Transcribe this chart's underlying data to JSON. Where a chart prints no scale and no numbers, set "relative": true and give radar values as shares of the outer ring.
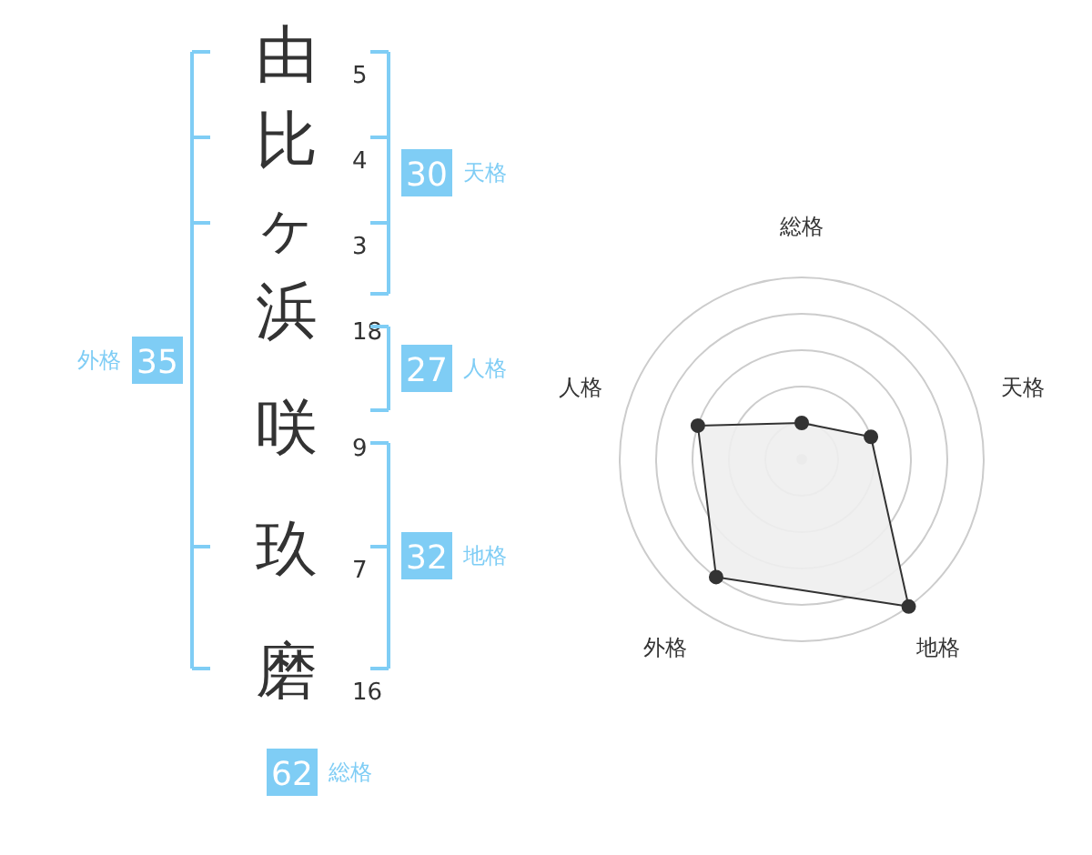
{
  "chart_data": [
    {
      "type": "other",
      "categories": [
        "由",
        "比",
        "ヶ",
        "浜",
        "咲",
        "玖",
        "磨"
      ],
      "color": "#7fcdf5",
      "annotations": [
        "5",
        "4",
        "3",
        "18",
        "9",
        "7",
        "16",
        "30",
        "天格",
        "27",
        "人格",
        "32",
        "地格",
        "35",
        "外格",
        "62",
        "総格"
      ]
    },
    {
      "type": "radar",
      "categories": [
        "総格",
        "天格",
        "地格",
        "外格",
        "人格"
      ],
      "relative": true,
      "grid": true,
      "marker": "circle",
      "series": [
        {
          "values": [
            0.2,
            0.4,
            1.0,
            0.8,
            0.6
          ],
          "color": "#333333"
        }
      ]
    }
  ]
}
